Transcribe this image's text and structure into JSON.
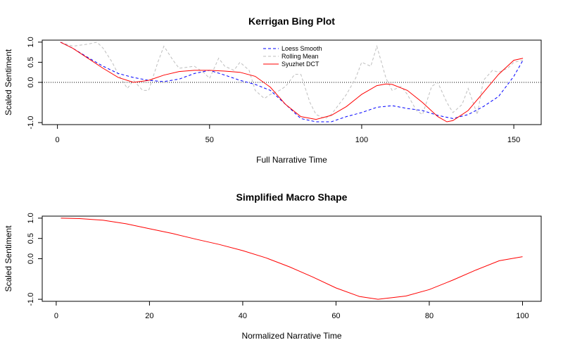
{
  "chart_data": [
    {
      "type": "line",
      "title": "Kerrigan Bing Plot",
      "xlabel": "Full Narrative Time",
      "ylabel": "Scaled Sentiment",
      "xlim": [
        -5,
        159
      ],
      "ylim": [
        -1.05,
        1.05
      ],
      "xticks": [
        0,
        50,
        100,
        150
      ],
      "yticks": [
        -1.0,
        0.0,
        0.5,
        1.0
      ],
      "ytick_labels": [
        "-1.0",
        "0.0",
        "0.5",
        "1.0"
      ],
      "hline": 0,
      "grid": false,
      "legend": {
        "position": "top-center",
        "entries": [
          "Loess Smooth",
          "Rolling Mean",
          "Syuzhet DCT"
        ]
      },
      "series": [
        {
          "name": "Loess Smooth",
          "color": "#0000ff",
          "style": "dashed",
          "x": [
            1,
            5,
            10,
            15,
            20,
            25,
            30,
            35,
            40,
            45,
            50,
            55,
            60,
            65,
            70,
            75,
            80,
            85,
            90,
            95,
            100,
            105,
            110,
            115,
            120,
            125,
            130,
            135,
            140,
            145,
            150,
            153
          ],
          "y": [
            1.0,
            0.85,
            0.62,
            0.4,
            0.22,
            0.12,
            0.05,
            0.02,
            0.08,
            0.22,
            0.3,
            0.18,
            0.05,
            -0.05,
            -0.2,
            -0.55,
            -0.9,
            -0.98,
            -0.98,
            -0.85,
            -0.75,
            -0.62,
            -0.58,
            -0.65,
            -0.7,
            -0.82,
            -0.9,
            -0.8,
            -0.6,
            -0.35,
            0.15,
            0.55
          ]
        },
        {
          "name": "Rolling Mean",
          "color": "#bebebe",
          "style": "dashed",
          "x": [
            1,
            5,
            10,
            13,
            15,
            18,
            20,
            23,
            25,
            28,
            30,
            33,
            35,
            38,
            40,
            45,
            48,
            50,
            53,
            55,
            58,
            60,
            63,
            65,
            68,
            70,
            73,
            75,
            78,
            80,
            83,
            85,
            88,
            90,
            93,
            95,
            98,
            100,
            103,
            105,
            108,
            110,
            113,
            115,
            118,
            120,
            123,
            125,
            128,
            130,
            133,
            135,
            138,
            140,
            143,
            145,
            148,
            150,
            153
          ],
          "y": [
            1.0,
            0.9,
            0.95,
            1.0,
            0.85,
            0.5,
            0.2,
            -0.15,
            0.05,
            -0.2,
            -0.2,
            0.5,
            0.9,
            0.55,
            0.35,
            0.4,
            0.25,
            0.1,
            0.6,
            0.4,
            0.3,
            0.5,
            0.3,
            -0.2,
            -0.4,
            -0.3,
            -0.2,
            -0.1,
            0.2,
            0.2,
            -0.5,
            -0.8,
            -0.9,
            -0.8,
            -0.5,
            -0.3,
            0.1,
            0.5,
            0.4,
            0.9,
            0.1,
            -0.2,
            -0.1,
            -0.3,
            -0.7,
            -0.8,
            -0.1,
            0.0,
            -0.5,
            -0.75,
            -0.55,
            -0.15,
            -0.8,
            0.05,
            0.3,
            0.25,
            0.35,
            0.5,
            0.55
          ]
        },
        {
          "name": "Syuzhet DCT",
          "color": "#ff0000",
          "style": "solid",
          "x": [
            1,
            5,
            10,
            15,
            20,
            25,
            30,
            35,
            40,
            45,
            50,
            55,
            60,
            65,
            70,
            75,
            80,
            85,
            90,
            95,
            100,
            105,
            108,
            110,
            115,
            120,
            125,
            128,
            130,
            135,
            140,
            145,
            150,
            153
          ],
          "y": [
            1.0,
            0.85,
            0.6,
            0.35,
            0.12,
            0.0,
            0.05,
            0.18,
            0.27,
            0.3,
            0.3,
            0.28,
            0.25,
            0.15,
            -0.12,
            -0.55,
            -0.85,
            -0.92,
            -0.82,
            -0.6,
            -0.3,
            -0.08,
            -0.04,
            -0.05,
            -0.2,
            -0.5,
            -0.85,
            -0.98,
            -0.95,
            -0.7,
            -0.25,
            0.2,
            0.55,
            0.6
          ]
        }
      ]
    },
    {
      "type": "line",
      "title": "Simplified Macro Shape",
      "xlabel": "Normalized Narrative Time",
      "ylabel": "Scaled Sentiment",
      "xlim": [
        -3,
        104
      ],
      "ylim": [
        -1.05,
        1.05
      ],
      "xticks": [
        0,
        20,
        40,
        60,
        80,
        100
      ],
      "yticks": [
        -1.0,
        0.0,
        0.5,
        1.0
      ],
      "ytick_labels": [
        "-1.0",
        "0.0",
        "0.5",
        "1.0"
      ],
      "grid": false,
      "series": [
        {
          "color": "#ff0000",
          "style": "solid",
          "x": [
            1,
            5,
            10,
            15,
            20,
            25,
            30,
            35,
            40,
            45,
            50,
            55,
            60,
            65,
            69,
            75,
            80,
            85,
            90,
            95,
            100
          ],
          "y": [
            1.0,
            0.99,
            0.95,
            0.86,
            0.74,
            0.62,
            0.48,
            0.35,
            0.2,
            0.02,
            -0.2,
            -0.45,
            -0.72,
            -0.93,
            -1.0,
            -0.92,
            -0.76,
            -0.53,
            -0.28,
            -0.05,
            0.05
          ]
        }
      ]
    }
  ]
}
